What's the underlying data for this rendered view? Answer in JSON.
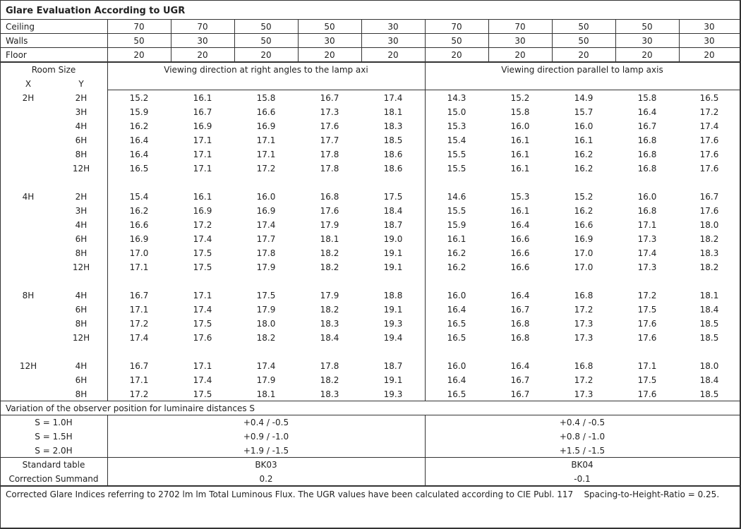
{
  "title": "Glare Evaluation According to UGR",
  "reflectances": [
    {
      "label": "Ceiling",
      "values": [
        "70",
        "70",
        "50",
        "50",
        "30",
        "70",
        "70",
        "50",
        "50",
        "30"
      ]
    },
    {
      "label": "Walls",
      "values": [
        "50",
        "30",
        "50",
        "30",
        "30",
        "50",
        "30",
        "50",
        "30",
        "30"
      ]
    },
    {
      "label": "Floor",
      "values": [
        "20",
        "20",
        "20",
        "20",
        "20",
        "20",
        "20",
        "20",
        "20",
        "20"
      ]
    }
  ],
  "header": {
    "room_size": "Room Size",
    "x": "X",
    "y": "Y",
    "perpendicular": "Viewing direction at right angles to the lamp axi",
    "parallel": "Viewing direction parallel to lamp axis"
  },
  "groups": [
    {
      "x": "2H",
      "rows": [
        {
          "y": "2H",
          "values": [
            "15.2",
            "16.1",
            "15.8",
            "16.7",
            "17.4",
            "14.3",
            "15.2",
            "14.9",
            "15.8",
            "16.5"
          ]
        },
        {
          "y": "3H",
          "values": [
            "15.9",
            "16.7",
            "16.6",
            "17.3",
            "18.1",
            "15.0",
            "15.8",
            "15.7",
            "16.4",
            "17.2"
          ]
        },
        {
          "y": "4H",
          "values": [
            "16.2",
            "16.9",
            "16.9",
            "17.6",
            "18.3",
            "15.3",
            "16.0",
            "16.0",
            "16.7",
            "17.4"
          ]
        },
        {
          "y": "6H",
          "values": [
            "16.4",
            "17.1",
            "17.1",
            "17.7",
            "18.5",
            "15.4",
            "16.1",
            "16.1",
            "16.8",
            "17.6"
          ]
        },
        {
          "y": "8H",
          "values": [
            "16.4",
            "17.1",
            "17.1",
            "17.8",
            "18.6",
            "15.5",
            "16.1",
            "16.2",
            "16.8",
            "17.6"
          ]
        },
        {
          "y": "12H",
          "values": [
            "16.5",
            "17.1",
            "17.2",
            "17.8",
            "18.6",
            "15.5",
            "16.1",
            "16.2",
            "16.8",
            "17.6"
          ]
        }
      ]
    },
    {
      "x": "4H",
      "rows": [
        {
          "y": "2H",
          "values": [
            "15.4",
            "16.1",
            "16.0",
            "16.8",
            "17.5",
            "14.6",
            "15.3",
            "15.2",
            "16.0",
            "16.7"
          ]
        },
        {
          "y": "3H",
          "values": [
            "16.2",
            "16.9",
            "16.9",
            "17.6",
            "18.4",
            "15.5",
            "16.1",
            "16.2",
            "16.8",
            "17.6"
          ]
        },
        {
          "y": "4H",
          "values": [
            "16.6",
            "17.2",
            "17.4",
            "17.9",
            "18.7",
            "15.9",
            "16.4",
            "16.6",
            "17.1",
            "18.0"
          ]
        },
        {
          "y": "6H",
          "values": [
            "16.9",
            "17.4",
            "17.7",
            "18.1",
            "19.0",
            "16.1",
            "16.6",
            "16.9",
            "17.3",
            "18.2"
          ]
        },
        {
          "y": "8H",
          "values": [
            "17.0",
            "17.5",
            "17.8",
            "18.2",
            "19.1",
            "16.2",
            "16.6",
            "17.0",
            "17.4",
            "18.3"
          ]
        },
        {
          "y": "12H",
          "values": [
            "17.1",
            "17.5",
            "17.9",
            "18.2",
            "19.1",
            "16.2",
            "16.6",
            "17.0",
            "17.3",
            "18.2"
          ]
        }
      ]
    },
    {
      "x": "8H",
      "rows": [
        {
          "y": "4H",
          "values": [
            "16.7",
            "17.1",
            "17.5",
            "17.9",
            "18.8",
            "16.0",
            "16.4",
            "16.8",
            "17.2",
            "18.1"
          ]
        },
        {
          "y": "6H",
          "values": [
            "17.1",
            "17.4",
            "17.9",
            "18.2",
            "19.1",
            "16.4",
            "16.7",
            "17.2",
            "17.5",
            "18.4"
          ]
        },
        {
          "y": "8H",
          "values": [
            "17.2",
            "17.5",
            "18.0",
            "18.3",
            "19.3",
            "16.5",
            "16.8",
            "17.3",
            "17.6",
            "18.5"
          ]
        },
        {
          "y": "12H",
          "values": [
            "17.4",
            "17.6",
            "18.2",
            "18.4",
            "19.4",
            "16.5",
            "16.8",
            "17.3",
            "17.6",
            "18.5"
          ]
        }
      ]
    },
    {
      "x": "12H",
      "rows": [
        {
          "y": "4H",
          "values": [
            "16.7",
            "17.1",
            "17.4",
            "17.8",
            "18.7",
            "16.0",
            "16.4",
            "16.8",
            "17.1",
            "18.0"
          ]
        },
        {
          "y": "6H",
          "values": [
            "17.1",
            "17.4",
            "17.9",
            "18.2",
            "19.1",
            "16.4",
            "16.7",
            "17.2",
            "17.5",
            "18.4"
          ]
        },
        {
          "y": "8H",
          "values": [
            "17.2",
            "17.5",
            "18.1",
            "18.3",
            "19.3",
            "16.5",
            "16.7",
            "17.3",
            "17.6",
            "18.5"
          ]
        }
      ]
    }
  ],
  "variation": {
    "title": "Variation of the observer position for luminaire distances S",
    "rows": [
      {
        "label": "S = 1.0H",
        "perpendicular": "+0.4 / -0.5",
        "parallel": "+0.4 / -0.5"
      },
      {
        "label": "S = 1.5H",
        "perpendicular": "+0.9 / -1.0",
        "parallel": "+0.8 / -1.0"
      },
      {
        "label": "S = 2.0H",
        "perpendicular": "+1.9 / -1.5",
        "parallel": "+1.5 / -1.5"
      }
    ]
  },
  "standard_table": {
    "label": "Standard table",
    "perpendicular": "BK03",
    "parallel": "BK04"
  },
  "correction": {
    "label": "Correction Summand",
    "perpendicular": "0.2",
    "parallel": "-0.1"
  },
  "footer": "Corrected Glare Indices referring to 2702 lm lm Total Luminous Flux. The UGR values have been calculated according to CIE Publ. 117    Spacing-to-Height-Ratio = 0.25."
}
